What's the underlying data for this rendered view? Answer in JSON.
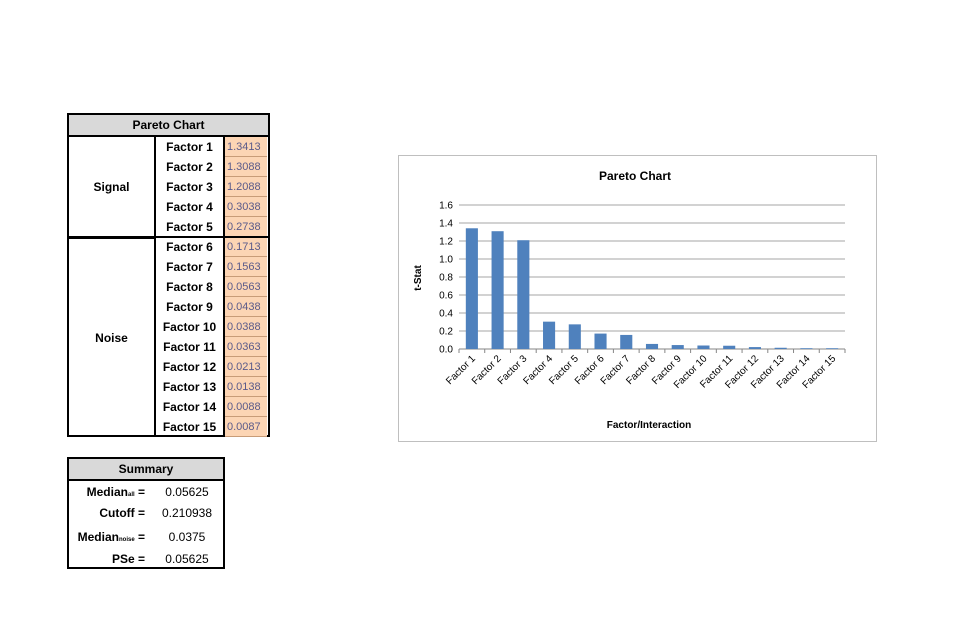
{
  "pareto_table": {
    "title": "Pareto Chart",
    "groups": [
      {
        "label": "Signal",
        "rows": [
          {
            "factor": "Factor 1",
            "value": "1.3413"
          },
          {
            "factor": "Factor 2",
            "value": "1.3088"
          },
          {
            "factor": "Factor 3",
            "value": "1.2088"
          },
          {
            "factor": "Factor 4",
            "value": "0.3038"
          },
          {
            "factor": "Factor 5",
            "value": "0.2738"
          }
        ]
      },
      {
        "label": "Noise",
        "rows": [
          {
            "factor": "Factor 6",
            "value": "0.1713"
          },
          {
            "factor": "Factor 7",
            "value": "0.1563"
          },
          {
            "factor": "Factor 8",
            "value": "0.0563"
          },
          {
            "factor": "Factor 9",
            "value": "0.0438"
          },
          {
            "factor": "Factor 10",
            "value": "0.0388"
          },
          {
            "factor": "Factor 11",
            "value": "0.0363"
          },
          {
            "factor": "Factor 12",
            "value": "0.0213"
          },
          {
            "factor": "Factor 13",
            "value": "0.0138"
          },
          {
            "factor": "Factor 14",
            "value": "0.0088"
          },
          {
            "factor": "Factor 15",
            "value": "0.0087"
          }
        ]
      }
    ]
  },
  "summary": {
    "title": "Summary",
    "rows": [
      {
        "label": "Median",
        "sub": "all",
        "suffix": " =",
        "value": "0.05625"
      },
      {
        "label": "Cutoff =",
        "sub": "",
        "suffix": "",
        "value": "0.210938"
      },
      {
        "label": "Median",
        "sub": "noise",
        "suffix": " =",
        "value": "0.0375"
      },
      {
        "label": "PSe =",
        "sub": "",
        "suffix": "",
        "value": "0.05625"
      }
    ]
  },
  "colors": {
    "bar": "#4f81bd",
    "cell_fill": "#fcd5b4",
    "header_fill": "#d9d9d9",
    "grid": "#868686"
  },
  "chart_data": {
    "type": "bar",
    "title": "Pareto Chart",
    "xlabel": "Factor/Interaction",
    "ylabel": "t-Stat",
    "categories": [
      "Factor 1",
      "Factor 2",
      "Factor 3",
      "Factor 4",
      "Factor 5",
      "Factor 6",
      "Factor 7",
      "Factor 8",
      "Factor 9",
      "Factor 10",
      "Factor 11",
      "Factor 12",
      "Factor 13",
      "Factor 14",
      "Factor 15"
    ],
    "values": [
      1.3413,
      1.3088,
      1.2088,
      0.3038,
      0.2738,
      0.1713,
      0.1563,
      0.0563,
      0.0438,
      0.0388,
      0.0363,
      0.0213,
      0.0138,
      0.0088,
      0.0087
    ],
    "yticks": [
      "0.0",
      "0.2",
      "0.4",
      "0.6",
      "0.8",
      "1.0",
      "1.2",
      "1.4",
      "1.6"
    ],
    "ylim": [
      0,
      1.6
    ],
    "grid": true,
    "legend": "none"
  }
}
